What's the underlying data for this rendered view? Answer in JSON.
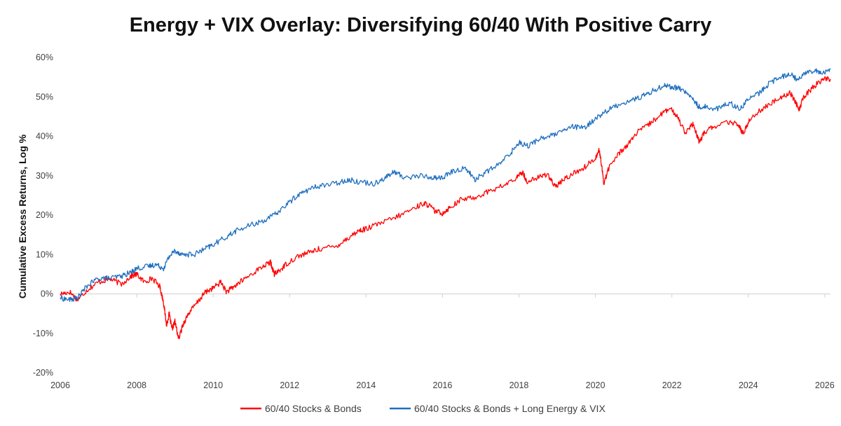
{
  "chart_data": {
    "type": "line",
    "title": "Energy + VIX Overlay: Diversifying 60/40 With Positive Carry",
    "xlabel": "",
    "ylabel": "Cumulative Excess Returns, Log %",
    "xlim": [
      2006,
      2026.15
    ],
    "ylim": [
      -20,
      60
    ],
    "x_ticks": [
      2006,
      2008,
      2010,
      2012,
      2014,
      2016,
      2018,
      2020,
      2022,
      2024,
      2026
    ],
    "x_tick_labels": [
      "2006",
      "2008",
      "2010",
      "2012",
      "2014",
      "2016",
      "2018",
      "2020",
      "2022",
      "2024",
      "2026"
    ],
    "y_ticks": [
      -20,
      -10,
      0,
      10,
      20,
      30,
      40,
      50,
      60
    ],
    "y_tick_labels": [
      "-20%",
      "-10%",
      "0%",
      "10%",
      "20%",
      "30%",
      "40%",
      "50%",
      "60%"
    ],
    "legend_position": "bottom",
    "series": [
      {
        "name": "60/40 Stocks & Bonds",
        "color": "#ff0000",
        "points": [
          [
            2006.0,
            0
          ],
          [
            2006.25,
            0.5
          ],
          [
            2006.45,
            -1.5
          ],
          [
            2006.7,
            1
          ],
          [
            2007.0,
            3
          ],
          [
            2007.3,
            3.8
          ],
          [
            2007.6,
            2.5
          ],
          [
            2007.85,
            4.5
          ],
          [
            2008.0,
            5
          ],
          [
            2008.2,
            3
          ],
          [
            2008.4,
            4
          ],
          [
            2008.6,
            2
          ],
          [
            2008.7,
            -2
          ],
          [
            2008.78,
            -8
          ],
          [
            2008.85,
            -5
          ],
          [
            2008.92,
            -9
          ],
          [
            2009.0,
            -7
          ],
          [
            2009.1,
            -11.5
          ],
          [
            2009.2,
            -8
          ],
          [
            2009.35,
            -5
          ],
          [
            2009.6,
            -2
          ],
          [
            2009.8,
            0.5
          ],
          [
            2010.0,
            1.5
          ],
          [
            2010.2,
            3
          ],
          [
            2010.35,
            0.5
          ],
          [
            2010.5,
            1.5
          ],
          [
            2010.7,
            3
          ],
          [
            2011.0,
            5
          ],
          [
            2011.3,
            7
          ],
          [
            2011.5,
            8
          ],
          [
            2011.6,
            5
          ],
          [
            2011.75,
            6
          ],
          [
            2011.9,
            7.5
          ],
          [
            2012.2,
            9.5
          ],
          [
            2012.5,
            10.5
          ],
          [
            2012.8,
            11.5
          ],
          [
            2013.2,
            12
          ],
          [
            2013.5,
            14
          ],
          [
            2013.8,
            16
          ],
          [
            2014.0,
            16.5
          ],
          [
            2014.4,
            18
          ],
          [
            2014.8,
            19.5
          ],
          [
            2015.2,
            21.5
          ],
          [
            2015.5,
            23
          ],
          [
            2015.65,
            22.5
          ],
          [
            2015.8,
            21
          ],
          [
            2016.0,
            20.5
          ],
          [
            2016.2,
            22
          ],
          [
            2016.5,
            24
          ],
          [
            2016.85,
            24.5
          ],
          [
            2017.2,
            26
          ],
          [
            2017.6,
            27.5
          ],
          [
            2017.95,
            29.5
          ],
          [
            2018.1,
            31
          ],
          [
            2018.2,
            28.5
          ],
          [
            2018.5,
            29.5
          ],
          [
            2018.75,
            30.5
          ],
          [
            2018.95,
            27
          ],
          [
            2019.1,
            28.5
          ],
          [
            2019.4,
            30.5
          ],
          [
            2019.7,
            32
          ],
          [
            2020.0,
            34.5
          ],
          [
            2020.1,
            36.5
          ],
          [
            2020.17,
            32
          ],
          [
            2020.22,
            28
          ],
          [
            2020.35,
            32
          ],
          [
            2020.6,
            35.5
          ],
          [
            2020.85,
            38
          ],
          [
            2021.1,
            41
          ],
          [
            2021.4,
            43
          ],
          [
            2021.7,
            45.5
          ],
          [
            2021.95,
            47
          ],
          [
            2022.15,
            45
          ],
          [
            2022.35,
            41
          ],
          [
            2022.55,
            43
          ],
          [
            2022.72,
            38.5
          ],
          [
            2022.85,
            41
          ],
          [
            2023.1,
            42.5
          ],
          [
            2023.45,
            43.5
          ],
          [
            2023.75,
            43
          ],
          [
            2023.85,
            40.5
          ],
          [
            2024.05,
            44.5
          ],
          [
            2024.3,
            46.5
          ],
          [
            2024.55,
            48
          ],
          [
            2024.85,
            50
          ],
          [
            2025.1,
            51
          ],
          [
            2025.25,
            48.5
          ],
          [
            2025.32,
            46.5
          ],
          [
            2025.45,
            50
          ],
          [
            2025.7,
            52.5
          ],
          [
            2025.95,
            54.5
          ],
          [
            2026.15,
            54.5
          ]
        ]
      },
      {
        "name": "60/40 Stocks & Bonds + Long Energy & VIX",
        "color": "#1f6fbf",
        "points": [
          [
            2006.0,
            -1
          ],
          [
            2006.25,
            -1.5
          ],
          [
            2006.45,
            -1
          ],
          [
            2006.7,
            2
          ],
          [
            2007.0,
            4
          ],
          [
            2007.3,
            4
          ],
          [
            2007.6,
            4.5
          ],
          [
            2007.85,
            5.5
          ],
          [
            2008.0,
            6.5
          ],
          [
            2008.3,
            7
          ],
          [
            2008.5,
            7.5
          ],
          [
            2008.7,
            6.5
          ],
          [
            2008.85,
            9.5
          ],
          [
            2009.0,
            11
          ],
          [
            2009.2,
            10
          ],
          [
            2009.5,
            10
          ],
          [
            2009.8,
            11.5
          ],
          [
            2010.0,
            12.5
          ],
          [
            2010.35,
            14.5
          ],
          [
            2010.6,
            16
          ],
          [
            2011.0,
            17.5
          ],
          [
            2011.3,
            18.5
          ],
          [
            2011.6,
            20
          ],
          [
            2011.9,
            22.5
          ],
          [
            2012.2,
            25
          ],
          [
            2012.5,
            26.5
          ],
          [
            2012.8,
            27.5
          ],
          [
            2013.2,
            28
          ],
          [
            2013.5,
            29
          ],
          [
            2013.8,
            28.5
          ],
          [
            2014.2,
            28
          ],
          [
            2014.5,
            29.5
          ],
          [
            2014.75,
            31
          ],
          [
            2015.0,
            29.5
          ],
          [
            2015.4,
            30
          ],
          [
            2015.75,
            29.5
          ],
          [
            2016.0,
            29.5
          ],
          [
            2016.25,
            31
          ],
          [
            2016.6,
            32
          ],
          [
            2016.85,
            29
          ],
          [
            2017.15,
            31
          ],
          [
            2017.5,
            33
          ],
          [
            2017.8,
            36
          ],
          [
            2018.0,
            38.5
          ],
          [
            2018.25,
            37.5
          ],
          [
            2018.55,
            39.5
          ],
          [
            2018.8,
            40
          ],
          [
            2019.1,
            41
          ],
          [
            2019.4,
            42.5
          ],
          [
            2019.7,
            42
          ],
          [
            2020.0,
            44.5
          ],
          [
            2020.3,
            46.5
          ],
          [
            2020.6,
            48
          ],
          [
            2020.9,
            49
          ],
          [
            2021.2,
            50
          ],
          [
            2021.5,
            51.5
          ],
          [
            2021.8,
            53
          ],
          [
            2022.0,
            52.5
          ],
          [
            2022.25,
            52
          ],
          [
            2022.5,
            50
          ],
          [
            2022.7,
            47.5
          ],
          [
            2022.9,
            47.5
          ],
          [
            2023.2,
            47
          ],
          [
            2023.5,
            48.5
          ],
          [
            2023.8,
            47
          ],
          [
            2024.0,
            49.5
          ],
          [
            2024.3,
            51
          ],
          [
            2024.55,
            53.5
          ],
          [
            2024.85,
            55
          ],
          [
            2025.1,
            56
          ],
          [
            2025.25,
            54.5
          ],
          [
            2025.5,
            56
          ],
          [
            2025.75,
            57
          ],
          [
            2025.9,
            56
          ],
          [
            2026.15,
            57
          ]
        ]
      }
    ]
  }
}
